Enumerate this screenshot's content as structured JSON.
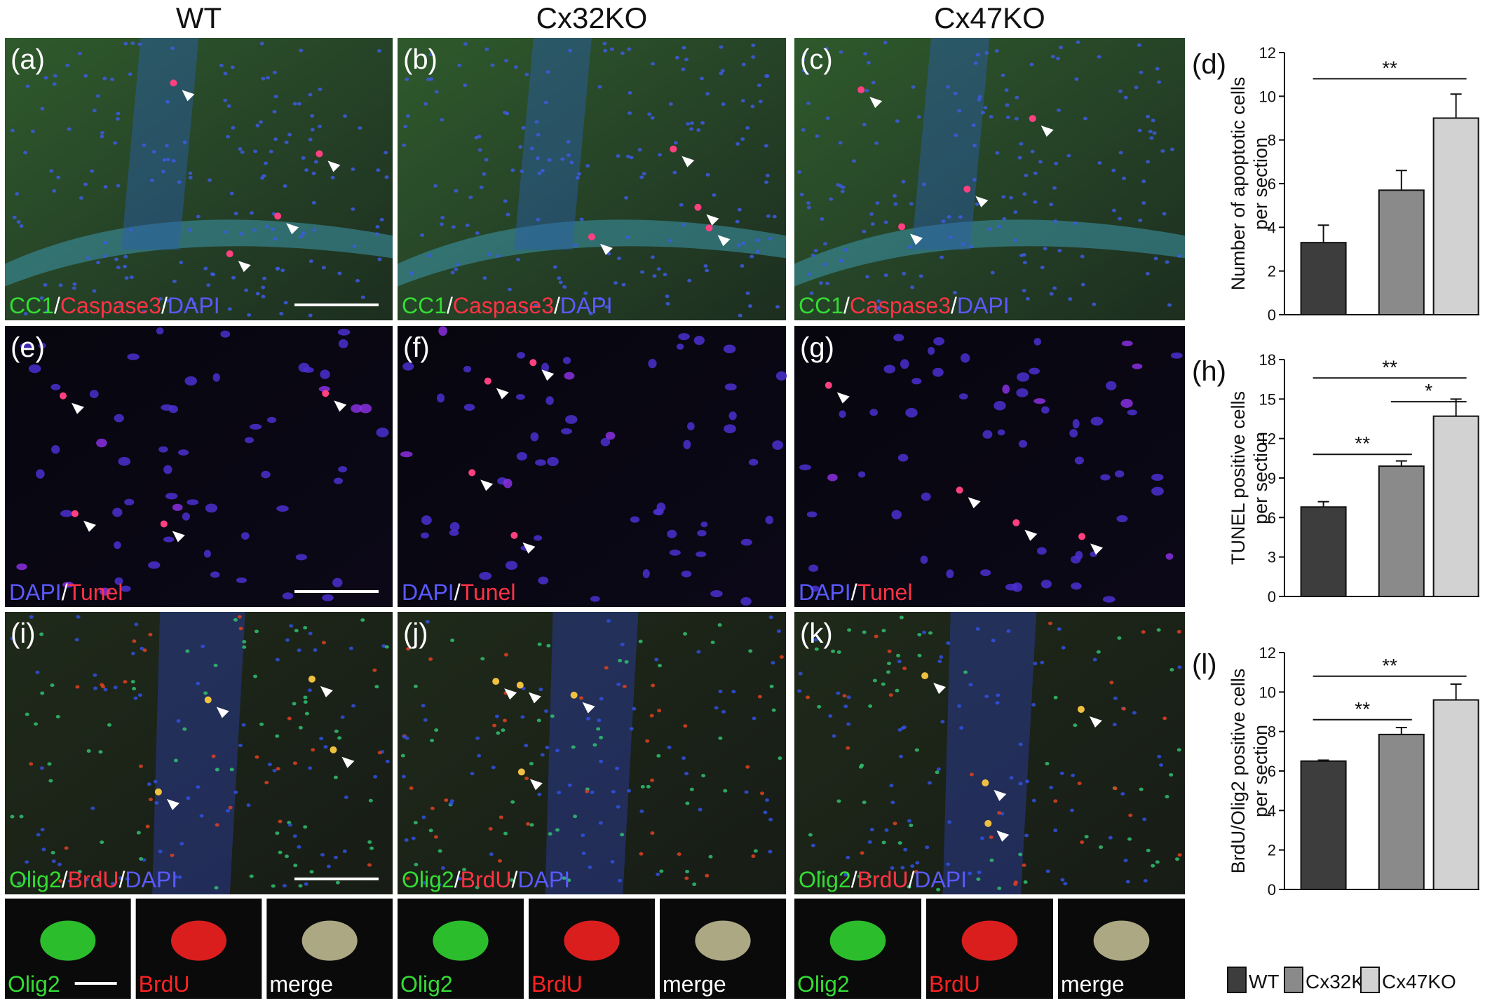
{
  "columns": [
    "WT",
    "Cx32KO",
    "Cx47KO"
  ],
  "image_rows": [
    {
      "panels": [
        {
          "label": "(a)",
          "stain": [
            {
              "text": "CC1",
              "color": "#33dd33"
            },
            {
              "text": "/",
              "color": "#ffffff"
            },
            {
              "text": "Caspase3",
              "color": "#ff3344"
            },
            {
              "text": "/",
              "color": "#ffffff"
            },
            {
              "text": "DAPI",
              "color": "#5a5aff"
            }
          ]
        },
        {
          "label": "(b)",
          "stain": [
            {
              "text": "CC1",
              "color": "#33dd33"
            },
            {
              "text": "/",
              "color": "#ffffff"
            },
            {
              "text": "Caspase3",
              "color": "#ff3344"
            },
            {
              "text": "/",
              "color": "#ffffff"
            },
            {
              "text": "DAPI",
              "color": "#5a5aff"
            }
          ]
        },
        {
          "label": "(c)",
          "stain": [
            {
              "text": "CC1",
              "color": "#33dd33"
            },
            {
              "text": "/",
              "color": "#ffffff"
            },
            {
              "text": "Caspase3",
              "color": "#ff3344"
            },
            {
              "text": "/",
              "color": "#ffffff"
            },
            {
              "text": "DAPI",
              "color": "#5a5aff"
            }
          ]
        }
      ]
    },
    {
      "panels": [
        {
          "label": "(e)",
          "stain": [
            {
              "text": "DAPI",
              "color": "#5a5aff"
            },
            {
              "text": "/",
              "color": "#ffffff"
            },
            {
              "text": "Tunel",
              "color": "#ff3344"
            }
          ]
        },
        {
          "label": "(f)",
          "stain": [
            {
              "text": "DAPI",
              "color": "#5a5aff"
            },
            {
              "text": "/",
              "color": "#ffffff"
            },
            {
              "text": "Tunel",
              "color": "#ff3344"
            }
          ]
        },
        {
          "label": "(g)",
          "stain": [
            {
              "text": "DAPI",
              "color": "#5a5aff"
            },
            {
              "text": "/",
              "color": "#ffffff"
            },
            {
              "text": "Tunel",
              "color": "#ff3344"
            }
          ]
        }
      ]
    },
    {
      "panels": [
        {
          "label": "(i)",
          "stain": [
            {
              "text": "Olig2",
              "color": "#33dd33"
            },
            {
              "text": "/",
              "color": "#ffffff"
            },
            {
              "text": "BrdU",
              "color": "#ff3344"
            },
            {
              "text": "/",
              "color": "#ffffff"
            },
            {
              "text": "DAPI",
              "color": "#5a5aff"
            }
          ]
        },
        {
          "label": "(j)",
          "stain": [
            {
              "text": "Olig2",
              "color": "#33dd33"
            },
            {
              "text": "/",
              "color": "#ffffff"
            },
            {
              "text": "BrdU",
              "color": "#ff3344"
            },
            {
              "text": "/",
              "color": "#ffffff"
            },
            {
              "text": "DAPI",
              "color": "#5a5aff"
            }
          ]
        },
        {
          "label": "(k)",
          "stain": [
            {
              "text": "Olig2",
              "color": "#33dd33"
            },
            {
              "text": "/",
              "color": "#ffffff"
            },
            {
              "text": "BrdU",
              "color": "#ff3344"
            },
            {
              "text": "/",
              "color": "#ffffff"
            },
            {
              "text": "DAPI",
              "color": "#5a5aff"
            }
          ]
        }
      ]
    }
  ],
  "insets": [
    [
      {
        "text": "Olig2",
        "color": "#33dd33"
      },
      {
        "text": "BrdU",
        "color": "#ff2222"
      },
      {
        "text": "merge",
        "color": "#ffffff"
      }
    ],
    [
      {
        "text": "Olig2",
        "color": "#33dd33"
      },
      {
        "text": "BrdU",
        "color": "#ff2222"
      },
      {
        "text": "merge",
        "color": "#ffffff"
      }
    ],
    [
      {
        "text": "Olig2",
        "color": "#33dd33"
      },
      {
        "text": "BrdU",
        "color": "#ff2222"
      },
      {
        "text": "merge",
        "color": "#ffffff"
      }
    ]
  ],
  "legend": [
    {
      "name": "WT",
      "color": "#3d3d3d"
    },
    {
      "name": "Cx32KO",
      "color": "#8a8a8a"
    },
    {
      "name": "Cx47KO",
      "color": "#d2d2d2"
    }
  ],
  "chart_data": [
    {
      "type": "bar",
      "label": "(d)",
      "ylabel": [
        "Number of apoptotic cells",
        "per section"
      ],
      "values": [
        3.3,
        5.7,
        9.0
      ],
      "errors": [
        0.8,
        0.9,
        1.1
      ],
      "ylim": [
        0,
        12
      ],
      "yticks": [
        0,
        2,
        4,
        6,
        8,
        10,
        12
      ],
      "significance": [
        {
          "text": "**",
          "from": 0,
          "to": 2,
          "y": 10.8
        }
      ]
    },
    {
      "type": "bar",
      "label": "(h)",
      "ylabel": [
        "TUNEL positive cells",
        "per section"
      ],
      "values": [
        6.8,
        9.9,
        13.7
      ],
      "errors": [
        0.4,
        0.4,
        1.3
      ],
      "ylim": [
        0,
        18
      ],
      "yticks": [
        0,
        3,
        6,
        9,
        12,
        15,
        18
      ],
      "significance": [
        {
          "text": "**",
          "from": 0,
          "to": 2,
          "y": 16.6
        },
        {
          "text": "*",
          "from": 1,
          "to": 2,
          "y": 14.8
        },
        {
          "text": "**",
          "from": 0,
          "to": 1,
          "y": 10.8
        }
      ]
    },
    {
      "type": "bar",
      "label": "(l)",
      "ylabel": [
        "BrdU/Olig2 positive cells",
        "per section"
      ],
      "values": [
        6.5,
        7.85,
        9.6
      ],
      "errors": [
        0.05,
        0.35,
        0.8
      ],
      "ylim": [
        0,
        12
      ],
      "yticks": [
        0,
        2,
        4,
        6,
        8,
        10,
        12
      ],
      "significance": [
        {
          "text": "**",
          "from": 0,
          "to": 2,
          "y": 10.8
        },
        {
          "text": "**",
          "from": 0,
          "to": 1,
          "y": 8.6
        }
      ]
    }
  ]
}
